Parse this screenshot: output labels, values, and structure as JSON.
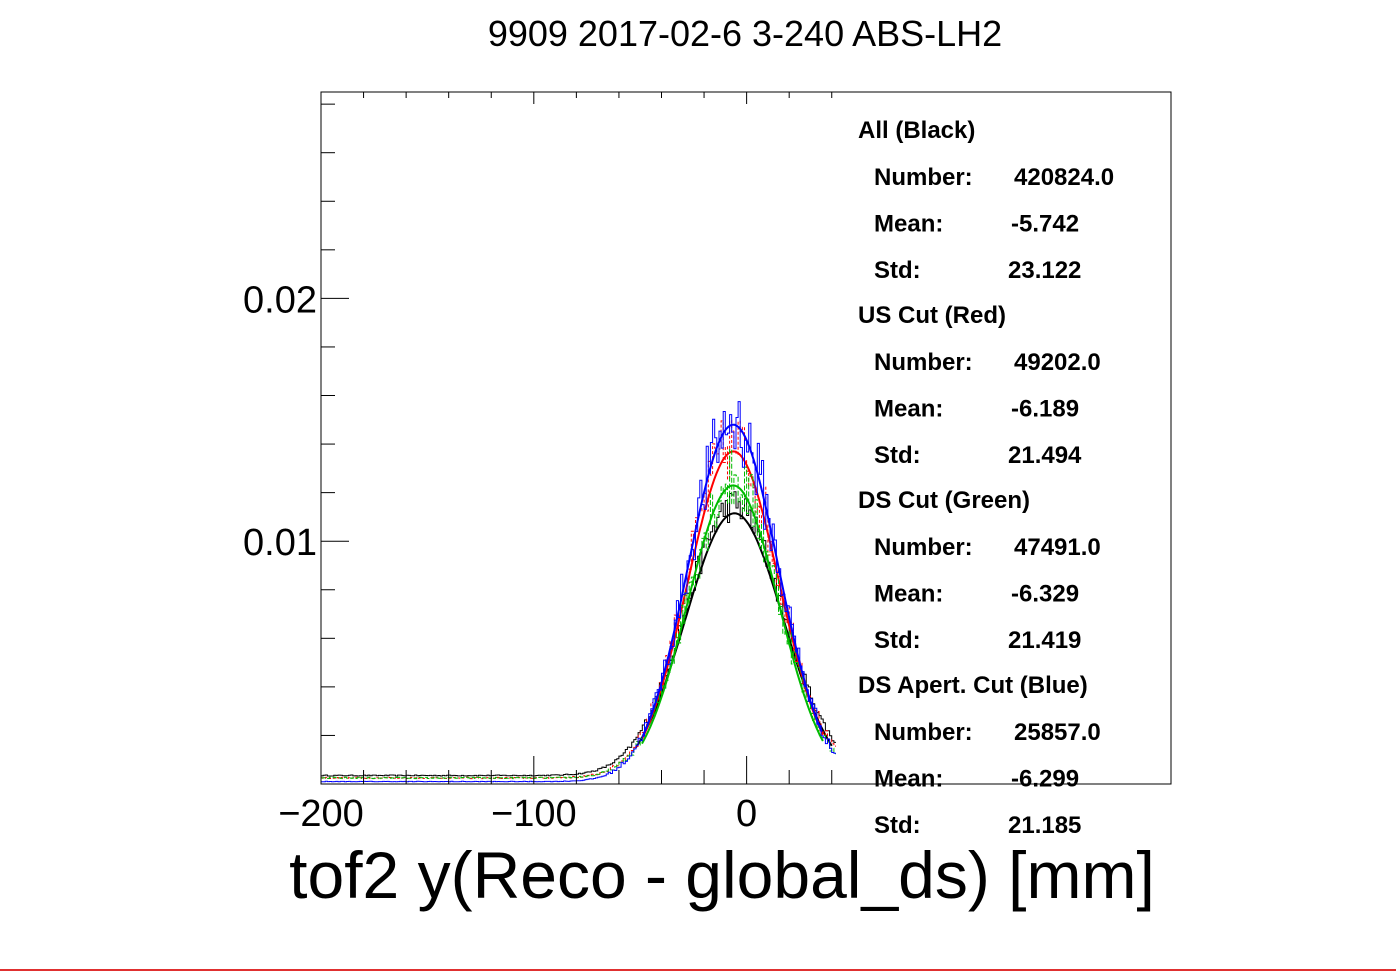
{
  "chart_data": {
    "type": "line",
    "title": "9909 2017-02-6 3-240 ABS-LH2",
    "xlabel": "tof2 y(Reco - global_ds) [mm]",
    "ylabel": "",
    "xlim": [
      -200,
      42
    ],
    "ylim": [
      0,
      0.0285
    ],
    "x_ticks": [
      {
        "value": -200,
        "label": "−200"
      },
      {
        "value": -100,
        "label": "−100"
      },
      {
        "value": 0,
        "label": "0"
      }
    ],
    "y_ticks": [
      {
        "value": 0.01,
        "label": "0.01"
      },
      {
        "value": 0.02,
        "label": "0.02"
      }
    ],
    "grid": false,
    "series": [
      {
        "name": "All (Black)",
        "color": "#000000",
        "number": "420824.0",
        "mean": "-5.742",
        "std": "23.122",
        "fit_mean": -5.742,
        "fit_std": 23.122,
        "peak": 0.01115,
        "tail": 0.00035
      },
      {
        "name": "US Cut (Red)",
        "color": "#ff0000",
        "number": "49202.0",
        "mean": "-6.189",
        "std": "21.494",
        "fit_mean": -6.189,
        "fit_std": 21.494,
        "peak": 0.0137,
        "tail": 0.00025
      },
      {
        "name": "DS Cut (Green)",
        "color": "#00bb00",
        "number": "47491.0",
        "mean": "-6.329",
        "std": "21.419",
        "fit_mean": -6.329,
        "fit_std": 21.419,
        "peak": 0.0123,
        "tail": 0.00025
      },
      {
        "name": "DS Apert. Cut (Blue)",
        "color": "#0000ff",
        "number": "25857.0",
        "mean": "-6.299",
        "std": "21.185",
        "fit_mean": -6.299,
        "fit_std": 21.185,
        "peak": 0.0148,
        "tail": 0.0001
      }
    ],
    "stats": {
      "number_label": "Number:",
      "mean_label": "Mean:",
      "std_label": "Std:"
    }
  }
}
